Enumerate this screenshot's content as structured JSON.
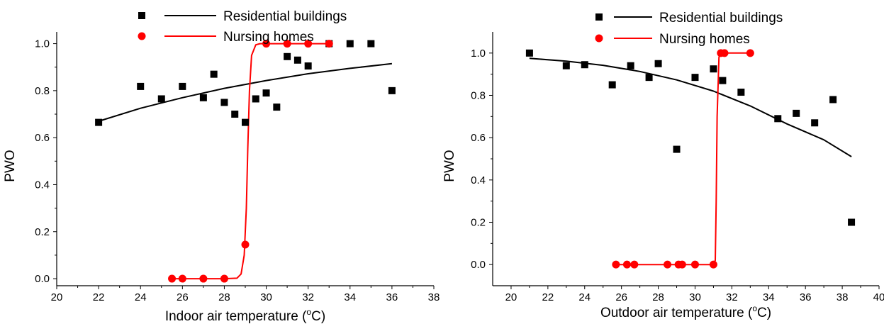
{
  "chart_data": [
    {
      "type": "scatter",
      "xlabel": "Indoor air temperature (",
      "xlabel_sup": "o",
      "xlabel_tail": "C)",
      "ylabel": "PWO",
      "xlim": [
        20,
        38
      ],
      "ylim": [
        -0.03,
        1.05
      ],
      "xticks": [
        20,
        22,
        24,
        26,
        28,
        30,
        32,
        34,
        36,
        38
      ],
      "yticks": [
        0.0,
        0.2,
        0.4,
        0.6,
        0.8,
        1.0
      ],
      "ytick_labels": [
        "0.0",
        "0.2",
        "0.4",
        "0.6",
        "0.8",
        "1.0"
      ],
      "legend": {
        "placement": "top-center"
      },
      "series": [
        {
          "name": "Residential buildings",
          "marker": "square",
          "color": "#000000",
          "points": [
            [
              22,
              0.665
            ],
            [
              24,
              0.818
            ],
            [
              25,
              0.765
            ],
            [
              26,
              0.818
            ],
            [
              27,
              0.77
            ],
            [
              27.5,
              0.87
            ],
            [
              28,
              0.75
            ],
            [
              28.5,
              0.7
            ],
            [
              29,
              0.665
            ],
            [
              29.5,
              0.765
            ],
            [
              30,
              0.79
            ],
            [
              30.5,
              0.73
            ],
            [
              31,
              0.945
            ],
            [
              31.5,
              0.93
            ],
            [
              32,
              0.905
            ],
            [
              33,
              1.0
            ],
            [
              34,
              1.0
            ],
            [
              35,
              1.0
            ],
            [
              36,
              0.8
            ]
          ],
          "fit": [
            [
              22,
              0.67
            ],
            [
              24,
              0.725
            ],
            [
              26,
              0.77
            ],
            [
              28,
              0.81
            ],
            [
              30,
              0.843
            ],
            [
              32,
              0.872
            ],
            [
              34,
              0.895
            ],
            [
              36,
              0.915
            ]
          ]
        },
        {
          "name": "Nursing homes",
          "marker": "circle",
          "color": "#ff0000",
          "points": [
            [
              25.5,
              0.0
            ],
            [
              26,
              0.0
            ],
            [
              27,
              0.0
            ],
            [
              28,
              0.0
            ],
            [
              29,
              0.145
            ],
            [
              30,
              1.0
            ],
            [
              31,
              1.0
            ],
            [
              32,
              1.0
            ],
            [
              33,
              1.0
            ]
          ],
          "fit": [
            [
              25.5,
              0.0
            ],
            [
              28,
              0.0
            ],
            [
              28.6,
              0.002
            ],
            [
              28.8,
              0.02
            ],
            [
              28.95,
              0.1
            ],
            [
              29.05,
              0.3
            ],
            [
              29.12,
              0.55
            ],
            [
              29.2,
              0.8
            ],
            [
              29.3,
              0.95
            ],
            [
              29.5,
              0.995
            ],
            [
              29.7,
              1.0
            ],
            [
              33,
              1.0
            ]
          ]
        }
      ]
    },
    {
      "type": "scatter",
      "xlabel": "Outdoor air temperature (",
      "xlabel_sup": "o",
      "xlabel_tail": "C)",
      "ylabel": "PWO",
      "xlim": [
        19,
        40
      ],
      "ylim": [
        -0.1,
        1.1
      ],
      "xticks": [
        20,
        22,
        24,
        26,
        28,
        30,
        32,
        34,
        36,
        38,
        40
      ],
      "yticks": [
        0.0,
        0.2,
        0.4,
        0.6,
        0.8,
        1.0
      ],
      "ytick_labels": [
        "0.0",
        "0.2",
        "0.4",
        "0.6",
        "0.8",
        "1.0"
      ],
      "legend": {
        "placement": "top-center"
      },
      "series": [
        {
          "name": "Residential buildings",
          "marker": "square",
          "color": "#000000",
          "points": [
            [
              21,
              1.0
            ],
            [
              23,
              0.94
            ],
            [
              24,
              0.945
            ],
            [
              25.5,
              0.85
            ],
            [
              26.5,
              0.94
            ],
            [
              27.5,
              0.885
            ],
            [
              28,
              0.95
            ],
            [
              29,
              0.545
            ],
            [
              30,
              0.885
            ],
            [
              31,
              0.925
            ],
            [
              31.5,
              0.87
            ],
            [
              32.5,
              0.815
            ],
            [
              34.5,
              0.69
            ],
            [
              35.5,
              0.715
            ],
            [
              36.5,
              0.67
            ],
            [
              37.5,
              0.78
            ],
            [
              38.5,
              0.2
            ]
          ],
          "fit": [
            [
              21,
              0.975
            ],
            [
              23,
              0.962
            ],
            [
              25,
              0.942
            ],
            [
              27,
              0.913
            ],
            [
              29,
              0.873
            ],
            [
              31,
              0.82
            ],
            [
              33,
              0.75
            ],
            [
              35,
              0.665
            ],
            [
              37,
              0.59
            ],
            [
              38.5,
              0.51
            ]
          ]
        },
        {
          "name": "Nursing homes",
          "marker": "circle",
          "color": "#ff0000",
          "points": [
            [
              25.7,
              0.0
            ],
            [
              26.3,
              0.0
            ],
            [
              26.7,
              0.0
            ],
            [
              28.5,
              0.0
            ],
            [
              29.1,
              0.0
            ],
            [
              29.3,
              0.0
            ],
            [
              30,
              0.0
            ],
            [
              31,
              0.0
            ],
            [
              31.4,
              1.0
            ],
            [
              31.6,
              1.0
            ],
            [
              33,
              1.0
            ]
          ],
          "fit": [
            [
              25.7,
              0.0
            ],
            [
              31.0,
              0.0
            ],
            [
              31.1,
              0.02
            ],
            [
              31.15,
              0.3
            ],
            [
              31.2,
              0.7
            ],
            [
              31.3,
              0.98
            ],
            [
              31.4,
              1.0
            ],
            [
              33,
              1.0
            ]
          ]
        }
      ]
    }
  ]
}
